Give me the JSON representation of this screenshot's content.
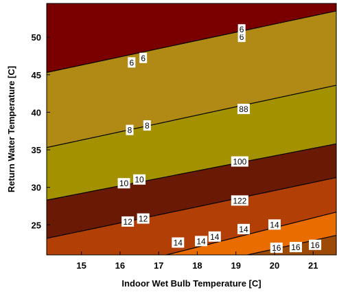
{
  "chart_data": {
    "type": "contour",
    "title": "",
    "xlabel": "Indoor Wet Bulb Temperature [C]",
    "ylabel": "Return Water Temperature [C]",
    "xlim": [
      14.1,
      21.6
    ],
    "ylim": [
      21,
      54.5
    ],
    "xticks": [
      15,
      16,
      17,
      18,
      19,
      20,
      21
    ],
    "yticks": [
      25,
      30,
      35,
      40,
      45,
      50
    ],
    "grid": false,
    "legend": "none",
    "levels": [
      6,
      8,
      10,
      12,
      14,
      16
    ],
    "fill_colors": [
      "#7a0000",
      "#b08a14",
      "#a39100",
      "#6a1a04",
      "#b23f05",
      "#e86c00",
      "#9c4a06"
    ],
    "contour_lines": [
      {
        "level": 6,
        "points": [
          [
            14.1,
            45.3
          ],
          [
            21.6,
            53.5
          ]
        ]
      },
      {
        "level": 8,
        "points": [
          [
            14.1,
            35.3
          ],
          [
            21.6,
            43.6
          ]
        ]
      },
      {
        "level": 10,
        "points": [
          [
            14.1,
            28.3
          ],
          [
            21.6,
            35.8
          ]
        ]
      },
      {
        "level": 12,
        "points": [
          [
            14.1,
            23.2
          ],
          [
            21.6,
            31.3
          ]
        ]
      },
      {
        "level": 14,
        "points": [
          [
            17.2,
            21.0
          ],
          [
            21.6,
            26.7
          ]
        ]
      },
      {
        "level": 16,
        "points": [
          [
            19.3,
            21.0
          ],
          [
            21.6,
            23.6
          ]
        ]
      }
    ],
    "contour_labels": [
      {
        "text": "6",
        "x": 16.3,
        "y": 46.6
      },
      {
        "text": "6",
        "x": 16.6,
        "y": 47.2
      },
      {
        "text": "6",
        "x": 19.15,
        "y": 50.0
      },
      {
        "text": "6",
        "x": 19.15,
        "y": 51.0
      },
      {
        "text": "8",
        "x": 16.25,
        "y": 37.6
      },
      {
        "text": "8",
        "x": 16.7,
        "y": 38.2
      },
      {
        "text": "88",
        "x": 19.2,
        "y": 40.4
      },
      {
        "text": "100",
        "x": 19.1,
        "y": 33.4
      },
      {
        "text": "10",
        "x": 16.1,
        "y": 30.5
      },
      {
        "text": "10",
        "x": 16.5,
        "y": 31.0
      },
      {
        "text": "12",
        "x": 16.2,
        "y": 25.4
      },
      {
        "text": "12",
        "x": 16.6,
        "y": 25.8
      },
      {
        "text": "122",
        "x": 19.1,
        "y": 28.2
      },
      {
        "text": "14",
        "x": 17.5,
        "y": 22.6
      },
      {
        "text": "14",
        "x": 18.1,
        "y": 22.8
      },
      {
        "text": "14",
        "x": 18.45,
        "y": 23.4
      },
      {
        "text": "14",
        "x": 19.2,
        "y": 24.4
      },
      {
        "text": "14",
        "x": 20.0,
        "y": 25.0
      },
      {
        "text": "16",
        "x": 20.05,
        "y": 21.9
      },
      {
        "text": "16",
        "x": 20.55,
        "y": 22.0
      },
      {
        "text": "16",
        "x": 21.05,
        "y": 22.3
      }
    ]
  }
}
